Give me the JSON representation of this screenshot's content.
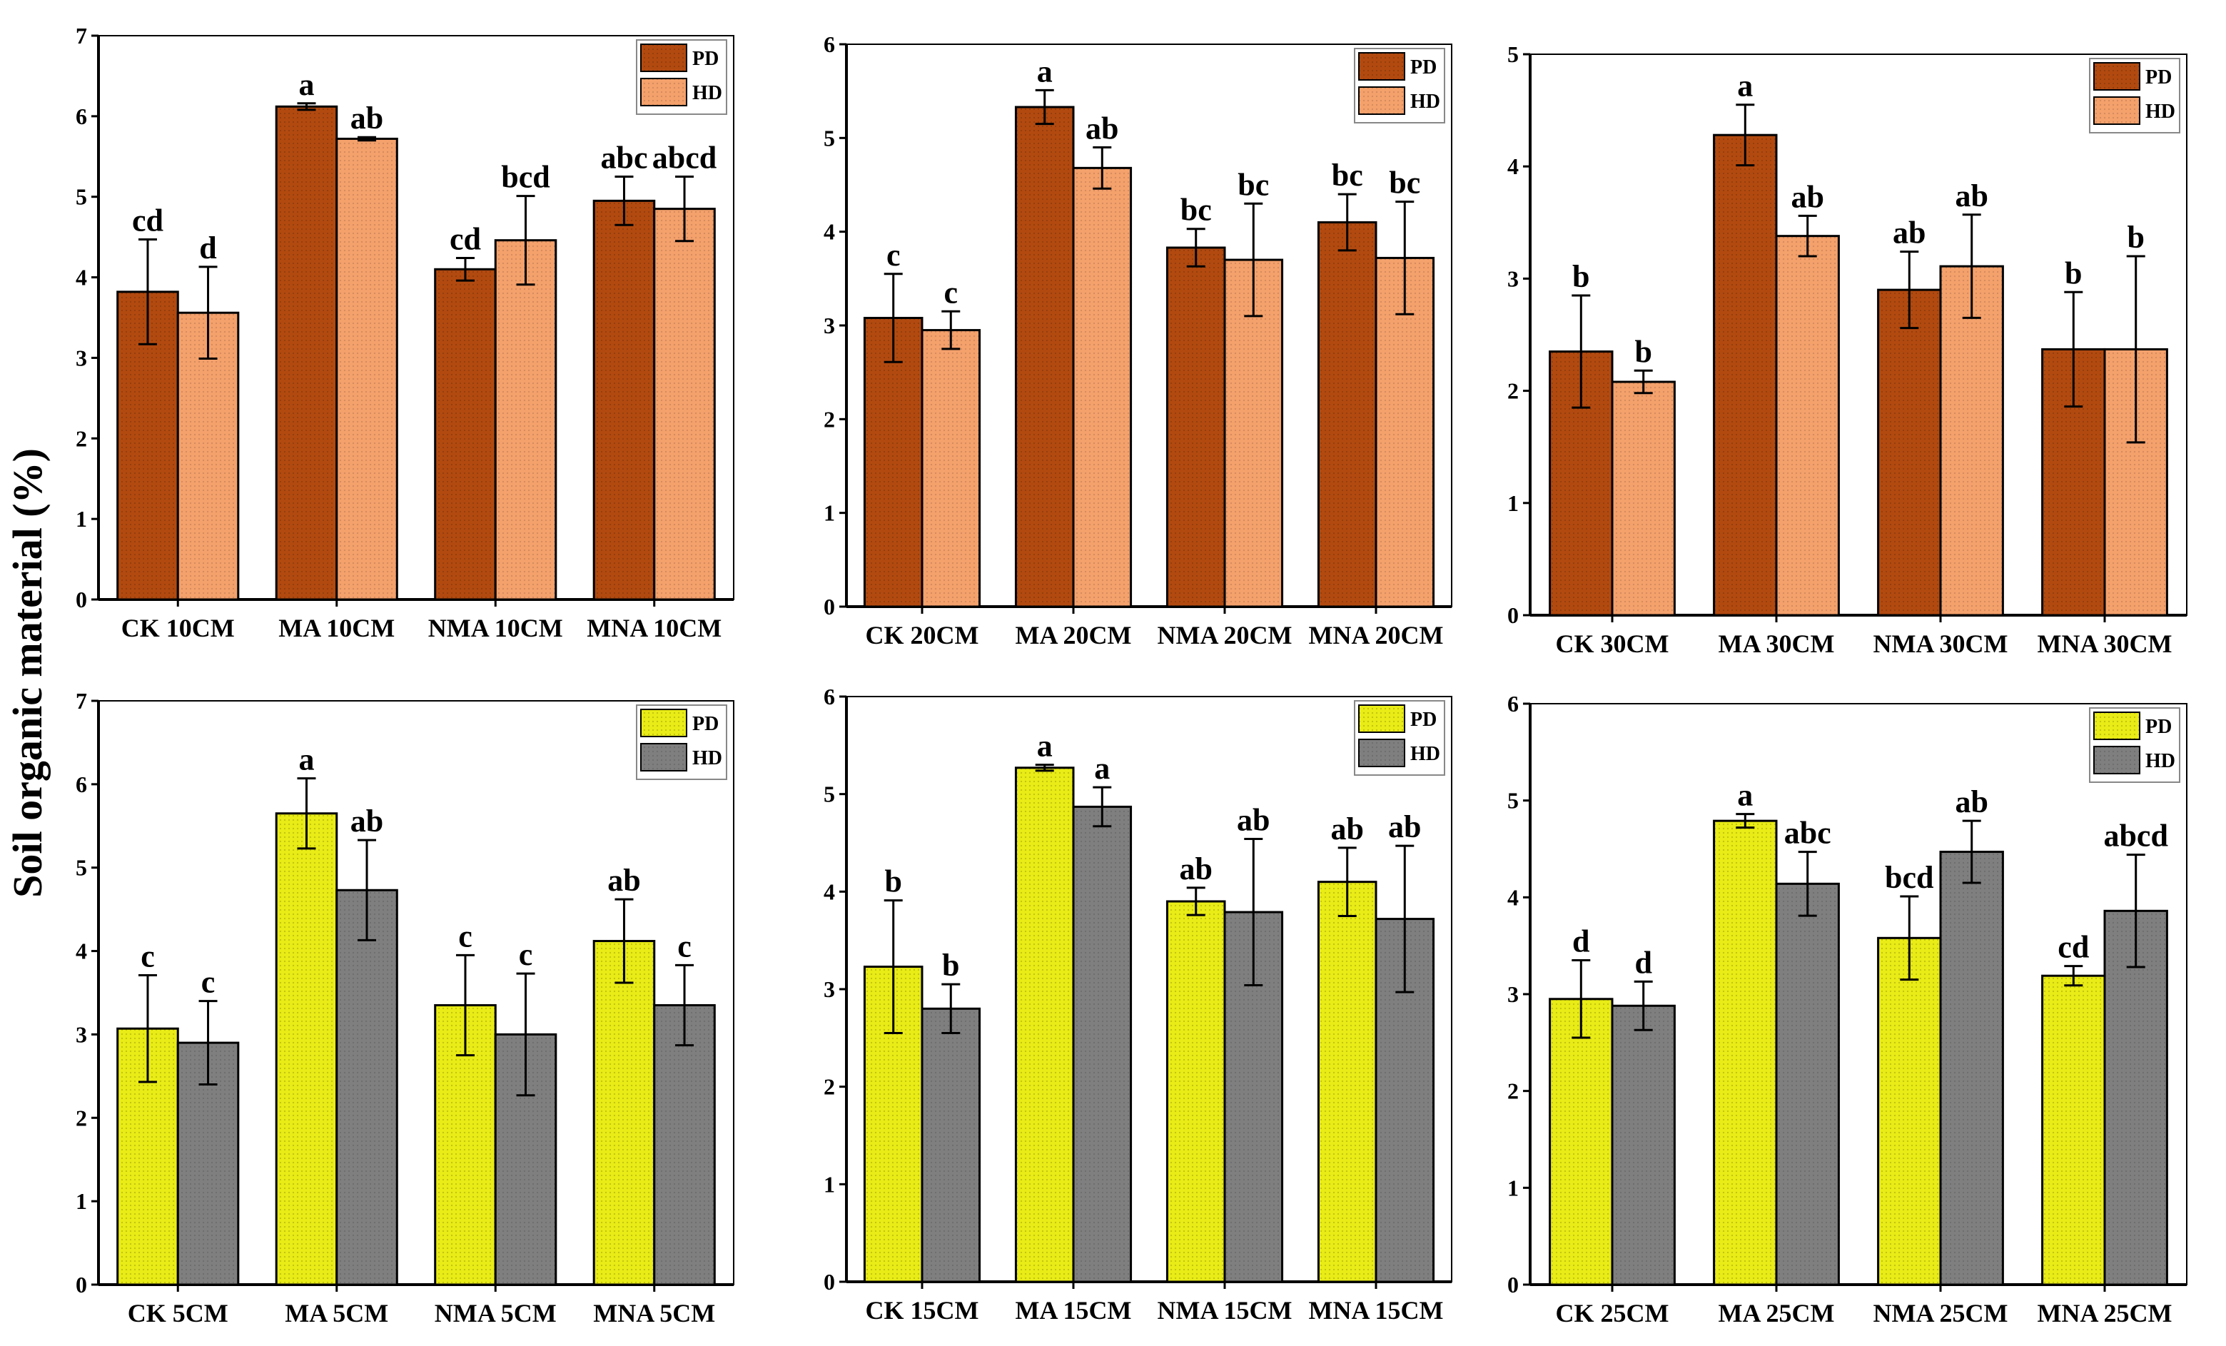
{
  "figure": {
    "ylabel": "Soil organic material (%)",
    "legend_placement": "top-right",
    "grid": false
  },
  "colors": {
    "pd_orange": "#b24a10",
    "hd_orange": "#f4a16c",
    "pd_yellow": "#e9ec16",
    "hd_gray": "#7f7f7f",
    "axis": "#000000"
  },
  "chart_data": [
    {
      "type": "bar",
      "categories": [
        "CK 10CM",
        "MA 10CM",
        "NMA 10CM",
        "MNA 10CM"
      ],
      "yticks": [
        "0",
        "1",
        "2",
        "3",
        "4",
        "5",
        "6",
        "7"
      ],
      "ylim": [
        0,
        7
      ],
      "palette": "orange",
      "series": [
        {
          "name": "PD",
          "values": [
            3.82,
            6.12,
            4.1,
            4.95
          ],
          "errors": [
            0.65,
            0.04,
            0.14,
            0.3
          ],
          "labels": [
            "cd",
            "a",
            "cd",
            "abc"
          ]
        },
        {
          "name": "HD",
          "values": [
            3.56,
            5.72,
            4.46,
            4.85
          ],
          "errors": [
            0.57,
            0.02,
            0.55,
            0.4
          ],
          "labels": [
            "d",
            "ab",
            "bcd",
            "abcd"
          ]
        }
      ]
    },
    {
      "type": "bar",
      "categories": [
        "CK 20CM",
        "MA 20CM",
        "NMA 20CM",
        "MNA 20CM"
      ],
      "yticks": [
        "0",
        "1",
        "2",
        "3",
        "4",
        "5",
        "6"
      ],
      "ylim": [
        0,
        6
      ],
      "palette": "orange",
      "series": [
        {
          "name": "PD",
          "values": [
            3.08,
            5.33,
            3.83,
            4.1
          ],
          "errors": [
            0.47,
            0.18,
            0.2,
            0.3
          ],
          "labels": [
            "c",
            "a",
            "bc",
            "bc"
          ]
        },
        {
          "name": "HD",
          "values": [
            2.95,
            4.68,
            3.7,
            3.72
          ],
          "errors": [
            0.2,
            0.22,
            0.6,
            0.6
          ],
          "labels": [
            "c",
            "ab",
            "bc",
            "bc"
          ]
        }
      ]
    },
    {
      "type": "bar",
      "categories": [
        "CK 30CM",
        "MA 30CM",
        "NMA 30CM",
        "MNA 30CM"
      ],
      "yticks": [
        "0",
        "1",
        "2",
        "3",
        "4",
        "5"
      ],
      "ylim": [
        0,
        5
      ],
      "palette": "orange",
      "series": [
        {
          "name": "PD",
          "values": [
            2.35,
            4.28,
            2.9,
            2.37
          ],
          "errors": [
            0.5,
            0.27,
            0.34,
            0.51
          ],
          "labels": [
            "b",
            "a",
            "ab",
            "b"
          ]
        },
        {
          "name": "HD",
          "values": [
            2.08,
            3.38,
            3.11,
            2.37
          ],
          "errors": [
            0.1,
            0.18,
            0.46,
            0.83
          ],
          "labels": [
            "b",
            "ab",
            "ab",
            "b"
          ]
        }
      ]
    },
    {
      "type": "bar",
      "categories": [
        "CK 5CM",
        "MA 5CM",
        "NMA 5CM",
        "MNA 5CM"
      ],
      "yticks": [
        "0",
        "1",
        "2",
        "3",
        "4",
        "5",
        "6",
        "7"
      ],
      "ylim": [
        0,
        7
      ],
      "palette": "yellow",
      "series": [
        {
          "name": "PD",
          "values": [
            3.07,
            5.65,
            3.35,
            4.12
          ],
          "errors": [
            0.64,
            0.42,
            0.6,
            0.5
          ],
          "labels": [
            "c",
            "a",
            "c",
            "ab"
          ]
        },
        {
          "name": "HD",
          "values": [
            2.9,
            4.73,
            3.0,
            3.35
          ],
          "errors": [
            0.5,
            0.6,
            0.73,
            0.48
          ],
          "labels": [
            "c",
            "ab",
            "c",
            "c"
          ]
        }
      ]
    },
    {
      "type": "bar",
      "categories": [
        "CK 15CM",
        "MA 15CM",
        "NMA 15CM",
        "MNA 15CM"
      ],
      "yticks": [
        "0",
        "1",
        "2",
        "3",
        "4",
        "5",
        "6"
      ],
      "ylim": [
        0,
        6
      ],
      "palette": "yellow",
      "series": [
        {
          "name": "PD",
          "values": [
            3.23,
            5.27,
            3.9,
            4.1
          ],
          "errors": [
            0.68,
            0.03,
            0.14,
            0.35
          ],
          "labels": [
            "b",
            "a",
            "ab",
            "ab"
          ]
        },
        {
          "name": "HD",
          "values": [
            2.8,
            4.87,
            3.79,
            3.72
          ],
          "errors": [
            0.25,
            0.2,
            0.75,
            0.75
          ],
          "labels": [
            "b",
            "a",
            "ab",
            "ab"
          ]
        }
      ]
    },
    {
      "type": "bar",
      "categories": [
        "CK 25CM",
        "MA 25CM",
        "NMA 25CM",
        "MNA 25CM"
      ],
      "yticks": [
        "0",
        "1",
        "2",
        "3",
        "4",
        "5",
        "6"
      ],
      "ylim": [
        0,
        6
      ],
      "palette": "yellow",
      "series": [
        {
          "name": "PD",
          "values": [
            2.95,
            4.79,
            3.58,
            3.19
          ],
          "errors": [
            0.4,
            0.07,
            0.43,
            0.1
          ],
          "labels": [
            "d",
            "a",
            "bcd",
            "cd"
          ]
        },
        {
          "name": "HD",
          "values": [
            2.88,
            4.14,
            4.47,
            3.86
          ],
          "errors": [
            0.25,
            0.33,
            0.32,
            0.58
          ],
          "labels": [
            "d",
            "abc",
            "ab",
            "abcd"
          ]
        }
      ]
    }
  ]
}
